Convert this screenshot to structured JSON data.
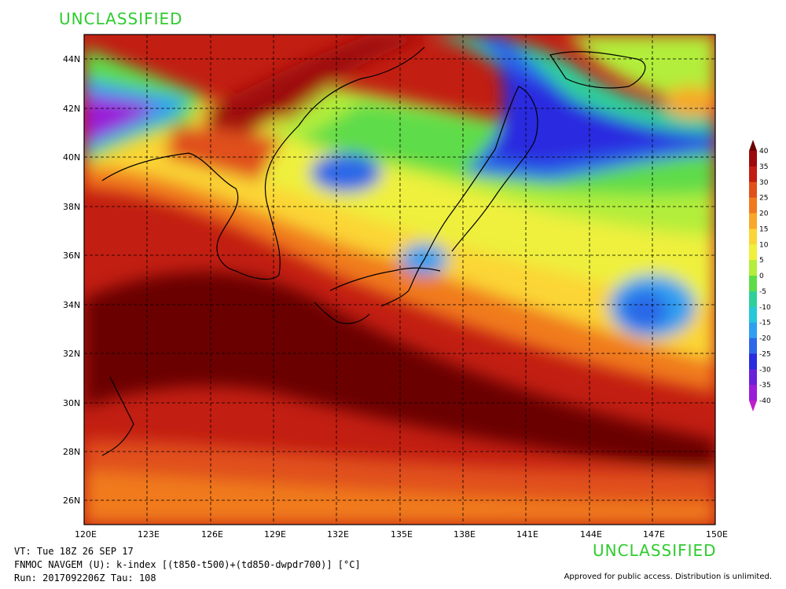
{
  "header": {
    "classification_top": "UNCLASSIFIED"
  },
  "footer": {
    "classification_bottom": "UNCLASSIFIED",
    "valid_time": "VT: Tue 18Z 26 SEP 17",
    "model_field": "FNMOC NAVGEM (U): k-index [(t850-t500)+(td850-dwpdr700)] [°C]",
    "run": "Run: 2017092206Z Tau: 108",
    "approval": "Approved for public access. Distribution is unlimited."
  },
  "map": {
    "lat_labels": [
      "44N",
      "42N",
      "40N",
      "38N",
      "36N",
      "34N",
      "32N",
      "30N",
      "28N",
      "26N"
    ],
    "lon_labels": [
      "120E",
      "123E",
      "126E",
      "129E",
      "132E",
      "135E",
      "138E",
      "141E",
      "144E",
      "147E",
      "150E"
    ],
    "lat_range": [
      25,
      45
    ],
    "lon_range": [
      120,
      150
    ]
  },
  "colorbar": {
    "ticks": [
      "40",
      "35",
      "30",
      "25",
      "20",
      "15",
      "10",
      "5",
      "0",
      "-5",
      "-10",
      "-15",
      "-20",
      "-25",
      "-30",
      "-35",
      "-40"
    ],
    "colors": [
      "#6b0000",
      "#9e0a0a",
      "#c21e12",
      "#e0501a",
      "#f07a1e",
      "#f7a828",
      "#fbd535",
      "#eef03c",
      "#b2ee3a",
      "#5edc48",
      "#2ed09a",
      "#24c8d8",
      "#2ea0f0",
      "#2c68e8",
      "#2a2ce0",
      "#6a22d8",
      "#9a1ed8",
      "#c020c8"
    ]
  }
}
